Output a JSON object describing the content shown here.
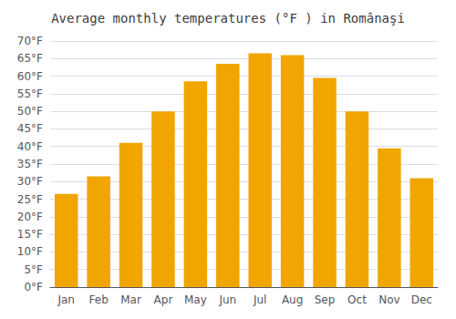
{
  "chart_data": {
    "type": "bar",
    "title": "Average monthly temperatures (°F ) in Românaşi",
    "categories": [
      "Jan",
      "Feb",
      "Mar",
      "Apr",
      "May",
      "Jun",
      "Jul",
      "Aug",
      "Sep",
      "Oct",
      "Nov",
      "Dec"
    ],
    "values": [
      26.5,
      31.5,
      41,
      50,
      58.5,
      63.5,
      66.5,
      66,
      59.5,
      50,
      39.5,
      31
    ],
    "color": "#F0A500",
    "ylim": [
      0,
      70
    ],
    "yticks": [
      {
        "value": 0,
        "label": "0°F"
      },
      {
        "value": 5,
        "label": "5°F"
      },
      {
        "value": 10,
        "label": "10°F"
      },
      {
        "value": 15,
        "label": "15°F"
      },
      {
        "value": 20,
        "label": "20°F"
      },
      {
        "value": 25,
        "label": "25°F"
      },
      {
        "value": 30,
        "label": "30°F"
      },
      {
        "value": 35,
        "label": "35°F"
      },
      {
        "value": 40,
        "label": "40°F"
      },
      {
        "value": 45,
        "label": "45°F"
      },
      {
        "value": 50,
        "label": "50°F"
      },
      {
        "value": 55,
        "label": "55°F"
      },
      {
        "value": 60,
        "label": "60°F"
      },
      {
        "value": 65,
        "label": "65°F"
      },
      {
        "value": 70,
        "label": "70°F"
      }
    ],
    "grid": true
  }
}
